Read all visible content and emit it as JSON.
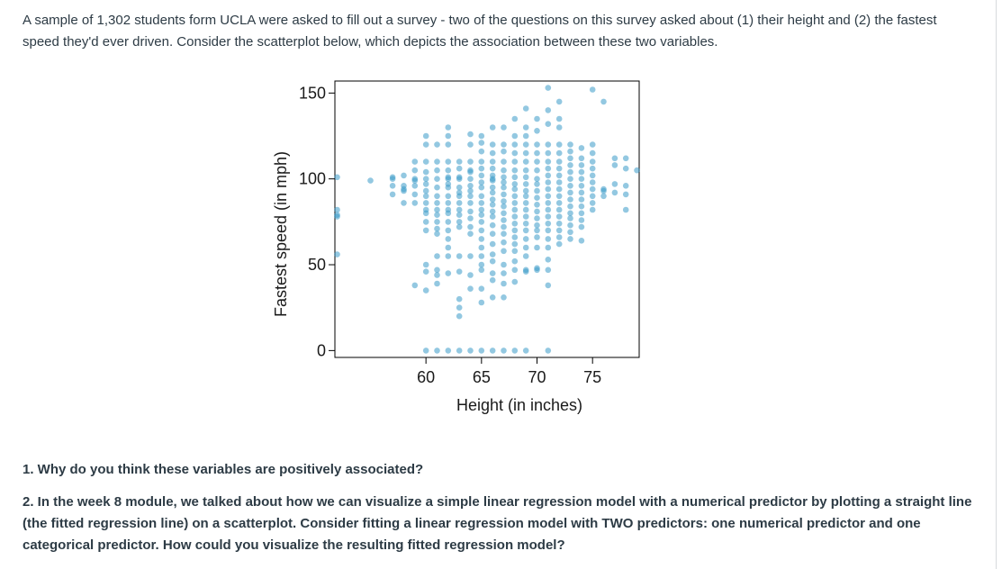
{
  "intro_text": "A sample of 1,302 students form UCLA were asked to fill out a survey - two of the questions on this survey asked about (1) their height and (2) the fastest speed they'd ever driven.  Consider the scatterplot below, which depicts the  association between these two variables.",
  "questions": [
    "1. Why do you think these variables are positively associated?",
    "2. In the week 8 module, we talked about how we can visualize a simple linear regression model with a numerical predictor by plotting a straight line (the fitted regression line) on a scatterplot.  Consider fitting a linear regression model with TWO predictors: one numerical predictor and one categorical predictor.  How could you visualize the resulting fitted regression model?"
  ],
  "colors": {
    "point": "#3a9bc8",
    "text": "#2d3b45",
    "axis": "#000000"
  },
  "chart_data": {
    "type": "scatter",
    "title": "",
    "xlabel": "Height (in inches)",
    "ylabel": "Fastest speed (in mph)",
    "xlim": [
      51.8,
      79.2
    ],
    "ylim": [
      -4,
      157
    ],
    "xticks": [
      60,
      65,
      70,
      75
    ],
    "yticks": [
      0,
      50,
      100,
      150
    ],
    "grid": false,
    "legend": "none",
    "points": [
      [
        52,
        101
      ],
      [
        52,
        56
      ],
      [
        52,
        78
      ],
      [
        52,
        79
      ],
      [
        52,
        82
      ],
      [
        55,
        99
      ],
      [
        57,
        96
      ],
      [
        57,
        101
      ],
      [
        57,
        100
      ],
      [
        57,
        91
      ],
      [
        58,
        96
      ],
      [
        58,
        102
      ],
      [
        58,
        93
      ],
      [
        58,
        86
      ],
      [
        58,
        94
      ],
      [
        59,
        86
      ],
      [
        59,
        96
      ],
      [
        59,
        110
      ],
      [
        59,
        105
      ],
      [
        59,
        100
      ],
      [
        59,
        91
      ],
      [
        59,
        99
      ],
      [
        59,
        38
      ],
      [
        60,
        0
      ],
      [
        60,
        100
      ],
      [
        60,
        125
      ],
      [
        60,
        120
      ],
      [
        60,
        110
      ],
      [
        60,
        104
      ],
      [
        60,
        97
      ],
      [
        60,
        93
      ],
      [
        60,
        90
      ],
      [
        60,
        86
      ],
      [
        60,
        82
      ],
      [
        60,
        80
      ],
      [
        60,
        75
      ],
      [
        60,
        70
      ],
      [
        60,
        50
      ],
      [
        60,
        46
      ],
      [
        60,
        35
      ],
      [
        61,
        0
      ],
      [
        61,
        110
      ],
      [
        61,
        120
      ],
      [
        61,
        105
      ],
      [
        61,
        100
      ],
      [
        61,
        95
      ],
      [
        61,
        90
      ],
      [
        61,
        86
      ],
      [
        61,
        82
      ],
      [
        61,
        79
      ],
      [
        61,
        75
      ],
      [
        61,
        71
      ],
      [
        61,
        68
      ],
      [
        61,
        55
      ],
      [
        61,
        47
      ],
      [
        61,
        44
      ],
      [
        61,
        39
      ],
      [
        62,
        0
      ],
      [
        62,
        130
      ],
      [
        62,
        125
      ],
      [
        62,
        120
      ],
      [
        62,
        110
      ],
      [
        62,
        105
      ],
      [
        62,
        100
      ],
      [
        62,
        97
      ],
      [
        62,
        95
      ],
      [
        62,
        90
      ],
      [
        62,
        86
      ],
      [
        62,
        82
      ],
      [
        62,
        80
      ],
      [
        62,
        75
      ],
      [
        62,
        70
      ],
      [
        62,
        65
      ],
      [
        62,
        60
      ],
      [
        62,
        55
      ],
      [
        62,
        45
      ],
      [
        63,
        0
      ],
      [
        63,
        110
      ],
      [
        63,
        106
      ],
      [
        63,
        101
      ],
      [
        63,
        100
      ],
      [
        63,
        95
      ],
      [
        63,
        92
      ],
      [
        63,
        90
      ],
      [
        63,
        86
      ],
      [
        63,
        82
      ],
      [
        63,
        79
      ],
      [
        63,
        75
      ],
      [
        63,
        72
      ],
      [
        63,
        55
      ],
      [
        63,
        46
      ],
      [
        63,
        30
      ],
      [
        63,
        25
      ],
      [
        63,
        20
      ],
      [
        64,
        0
      ],
      [
        64,
        126
      ],
      [
        64,
        120
      ],
      [
        64,
        110
      ],
      [
        64,
        105
      ],
      [
        64,
        100
      ],
      [
        64,
        96
      ],
      [
        64,
        93
      ],
      [
        64,
        90
      ],
      [
        64,
        86
      ],
      [
        64,
        81
      ],
      [
        64,
        77
      ],
      [
        64,
        72
      ],
      [
        64,
        68
      ],
      [
        64,
        55
      ],
      [
        64,
        44
      ],
      [
        64,
        36
      ],
      [
        65,
        0
      ],
      [
        65,
        125
      ],
      [
        65,
        121
      ],
      [
        65,
        116
      ],
      [
        65,
        110
      ],
      [
        65,
        106
      ],
      [
        65,
        102
      ],
      [
        65,
        98
      ],
      [
        65,
        95
      ],
      [
        65,
        90
      ],
      [
        65,
        86
      ],
      [
        65,
        82
      ],
      [
        65,
        79
      ],
      [
        65,
        75
      ],
      [
        65,
        70
      ],
      [
        65,
        65
      ],
      [
        65,
        60
      ],
      [
        65,
        55
      ],
      [
        65,
        50
      ],
      [
        65,
        47
      ],
      [
        65,
        36
      ],
      [
        65,
        28
      ],
      [
        66,
        0
      ],
      [
        66,
        130
      ],
      [
        66,
        120
      ],
      [
        66,
        115
      ],
      [
        66,
        110
      ],
      [
        66,
        106
      ],
      [
        66,
        102
      ],
      [
        66,
        99
      ],
      [
        66,
        95
      ],
      [
        66,
        92
      ],
      [
        66,
        88
      ],
      [
        66,
        85
      ],
      [
        66,
        81
      ],
      [
        66,
        78
      ],
      [
        66,
        73
      ],
      [
        66,
        68
      ],
      [
        66,
        62
      ],
      [
        66,
        56
      ],
      [
        66,
        52
      ],
      [
        66,
        45
      ],
      [
        66,
        41
      ],
      [
        66,
        31
      ],
      [
        67,
        0
      ],
      [
        67,
        130
      ],
      [
        67,
        120
      ],
      [
        67,
        116
      ],
      [
        67,
        110
      ],
      [
        67,
        105
      ],
      [
        67,
        101
      ],
      [
        67,
        98
      ],
      [
        67,
        95
      ],
      [
        67,
        91
      ],
      [
        67,
        87
      ],
      [
        67,
        84
      ],
      [
        67,
        80
      ],
      [
        67,
        76
      ],
      [
        67,
        72
      ],
      [
        67,
        68
      ],
      [
        67,
        63
      ],
      [
        67,
        58
      ],
      [
        67,
        50
      ],
      [
        67,
        45
      ],
      [
        67,
        39
      ],
      [
        67,
        31
      ],
      [
        68,
        0
      ],
      [
        68,
        135
      ],
      [
        68,
        125
      ],
      [
        68,
        120
      ],
      [
        68,
        115
      ],
      [
        68,
        110
      ],
      [
        68,
        105
      ],
      [
        68,
        101
      ],
      [
        68,
        97
      ],
      [
        68,
        94
      ],
      [
        68,
        90
      ],
      [
        68,
        86
      ],
      [
        68,
        82
      ],
      [
        68,
        78
      ],
      [
        68,
        74
      ],
      [
        68,
        70
      ],
      [
        68,
        66
      ],
      [
        68,
        62
      ],
      [
        68,
        58
      ],
      [
        68,
        52
      ],
      [
        68,
        47
      ],
      [
        68,
        40
      ],
      [
        69,
        0
      ],
      [
        69,
        141
      ],
      [
        69,
        130
      ],
      [
        69,
        125
      ],
      [
        69,
        120
      ],
      [
        69,
        115
      ],
      [
        69,
        110
      ],
      [
        69,
        105
      ],
      [
        69,
        101
      ],
      [
        69,
        97
      ],
      [
        69,
        93
      ],
      [
        69,
        90
      ],
      [
        69,
        86
      ],
      [
        69,
        82
      ],
      [
        69,
        78
      ],
      [
        69,
        74
      ],
      [
        69,
        70
      ],
      [
        69,
        65
      ],
      [
        69,
        60
      ],
      [
        69,
        55
      ],
      [
        69,
        47
      ],
      [
        70,
        135
      ],
      [
        70,
        128
      ],
      [
        70,
        120
      ],
      [
        70,
        115
      ],
      [
        70,
        110
      ],
      [
        70,
        105
      ],
      [
        70,
        100
      ],
      [
        70,
        97
      ],
      [
        70,
        93
      ],
      [
        70,
        89
      ],
      [
        70,
        85
      ],
      [
        70,
        81
      ],
      [
        70,
        77
      ],
      [
        70,
        73
      ],
      [
        70,
        70
      ],
      [
        70,
        66
      ],
      [
        70,
        60
      ],
      [
        70,
        47
      ],
      [
        71,
        0
      ],
      [
        71,
        153
      ],
      [
        71,
        140
      ],
      [
        71,
        132
      ],
      [
        71,
        120
      ],
      [
        71,
        115
      ],
      [
        71,
        110
      ],
      [
        71,
        106
      ],
      [
        71,
        102
      ],
      [
        71,
        98
      ],
      [
        71,
        94
      ],
      [
        71,
        90
      ],
      [
        71,
        86
      ],
      [
        71,
        82
      ],
      [
        71,
        78
      ],
      [
        71,
        74
      ],
      [
        71,
        70
      ],
      [
        71,
        65
      ],
      [
        71,
        60
      ],
      [
        71,
        53
      ],
      [
        71,
        47
      ],
      [
        71,
        38
      ],
      [
        72,
        145
      ],
      [
        72,
        135
      ],
      [
        72,
        130
      ],
      [
        72,
        120
      ],
      [
        72,
        115
      ],
      [
        72,
        110
      ],
      [
        72,
        106
      ],
      [
        72,
        102
      ],
      [
        72,
        98
      ],
      [
        72,
        94
      ],
      [
        72,
        90
      ],
      [
        72,
        86
      ],
      [
        72,
        82
      ],
      [
        72,
        78
      ],
      [
        72,
        74
      ],
      [
        72,
        70
      ],
      [
        72,
        66
      ],
      [
        72,
        62
      ],
      [
        73,
        120
      ],
      [
        73,
        116
      ],
      [
        73,
        112
      ],
      [
        73,
        108
      ],
      [
        73,
        104
      ],
      [
        73,
        100
      ],
      [
        73,
        96
      ],
      [
        73,
        92
      ],
      [
        73,
        88
      ],
      [
        73,
        84
      ],
      [
        73,
        80
      ],
      [
        73,
        77
      ],
      [
        73,
        73
      ],
      [
        73,
        69
      ],
      [
        73,
        65
      ],
      [
        74,
        118
      ],
      [
        74,
        112
      ],
      [
        74,
        108
      ],
      [
        74,
        104
      ],
      [
        74,
        100
      ],
      [
        74,
        96
      ],
      [
        74,
        92
      ],
      [
        74,
        88
      ],
      [
        74,
        84
      ],
      [
        74,
        80
      ],
      [
        74,
        76
      ],
      [
        74,
        72
      ],
      [
        74,
        64
      ],
      [
        75,
        152
      ],
      [
        75,
        120
      ],
      [
        75,
        115
      ],
      [
        75,
        110
      ],
      [
        75,
        106
      ],
      [
        75,
        102
      ],
      [
        75,
        98
      ],
      [
        75,
        94
      ],
      [
        75,
        90
      ],
      [
        75,
        86
      ],
      [
        75,
        82
      ],
      [
        76,
        145
      ],
      [
        76,
        93
      ],
      [
        76,
        90
      ],
      [
        76,
        94
      ],
      [
        77,
        108
      ],
      [
        77,
        112
      ],
      [
        77,
        92
      ],
      [
        77,
        97
      ],
      [
        78,
        112
      ],
      [
        78,
        106
      ],
      [
        78,
        96
      ],
      [
        78,
        91
      ],
      [
        78,
        82
      ],
      [
        79,
        105
      ],
      [
        69,
        46
      ],
      [
        70,
        48
      ],
      [
        66,
        100
      ],
      [
        64,
        104
      ],
      [
        62,
        101
      ]
    ]
  }
}
